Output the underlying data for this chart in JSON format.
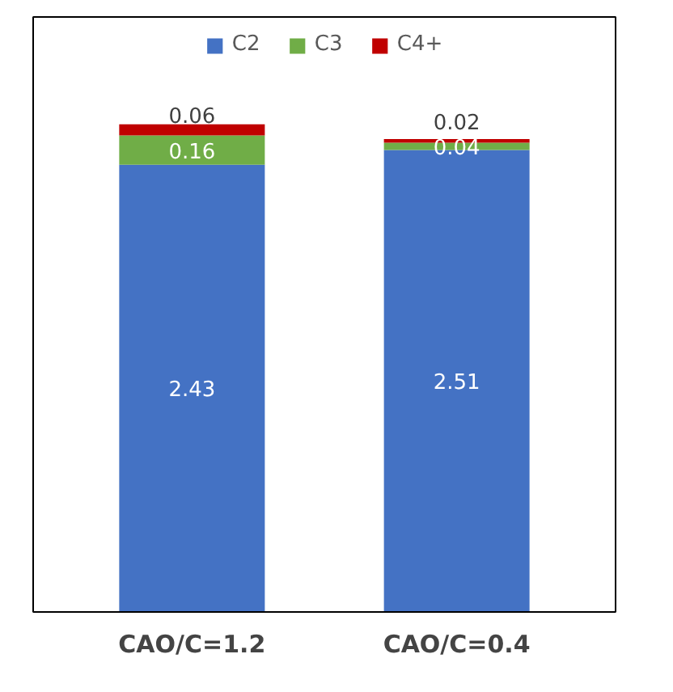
{
  "chart_data": {
    "type": "bar",
    "stacked": true,
    "data_labels": true,
    "legend": "top",
    "grid": false,
    "categories": [
      "CAO/C=1.2",
      "CAO/C=0.4"
    ],
    "series": [
      {
        "name": "C2",
        "color": "#4472c4",
        "values": [
          2.43,
          2.51
        ]
      },
      {
        "name": "C3",
        "color": "#70ad47",
        "values": [
          0.16,
          0.04
        ]
      },
      {
        "name": "C4+",
        "color": "#c00000",
        "values": [
          0.06,
          0.02
        ]
      }
    ]
  }
}
